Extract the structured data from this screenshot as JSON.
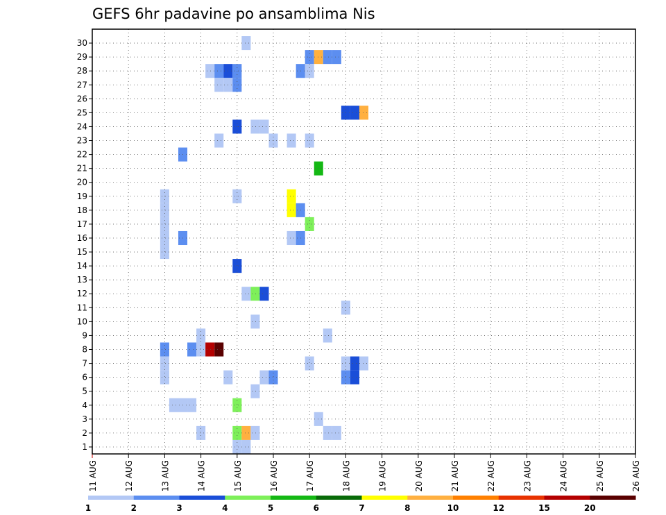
{
  "chart_data": {
    "type": "heatmap",
    "title": "GEFS 6hr padavine po ansamblima Nis",
    "xlabel": "",
    "ylabel": "",
    "x_ticks": [
      "11 AUG",
      "12 AUG",
      "13 AUG",
      "14 AUG",
      "15 AUG",
      "16 AUG",
      "17 AUG",
      "18 AUG",
      "19 AUG",
      "20 AUG",
      "21 AUG",
      "22 AUG",
      "23 AUG",
      "24 AUG",
      "25 AUG",
      "26 AUG"
    ],
    "xlim": [
      0,
      60
    ],
    "y_ticks": [
      "1",
      "2",
      "3",
      "4",
      "5",
      "6",
      "7",
      "8",
      "9",
      "10",
      "11",
      "12",
      "13",
      "14",
      "15",
      "16",
      "17",
      "18",
      "19",
      "20",
      "21",
      "22",
      "23",
      "24",
      "25",
      "26",
      "27",
      "28",
      "29",
      "30"
    ],
    "ylim": [
      0,
      30
    ],
    "grid": true,
    "colorbar": {
      "labels": [
        "1",
        "2",
        "3",
        "4",
        "5",
        "6",
        "7",
        "8",
        "10",
        "12",
        "15",
        "20"
      ],
      "colors": [
        "#b3c8f5",
        "#5c8ef0",
        "#1a4ed8",
        "#7ef05a",
        "#14b814",
        "#096b09",
        "#ffff00",
        "#ffb040",
        "#ff8000",
        "#e83200",
        "#b40000",
        "#5a0000"
      ]
    },
    "cells": [
      {
        "t": 17,
        "m": 30,
        "v": 1.5
      },
      {
        "t": 24,
        "m": 29,
        "v": 2.5
      },
      {
        "t": 25,
        "m": 29,
        "v": 9
      },
      {
        "t": 26,
        "m": 29,
        "v": 2.5
      },
      {
        "t": 27,
        "m": 29,
        "v": 2.5
      },
      {
        "t": 13,
        "m": 28,
        "v": 1.5
      },
      {
        "t": 14,
        "m": 28,
        "v": 2.5
      },
      {
        "t": 15,
        "m": 28,
        "v": 3.5
      },
      {
        "t": 16,
        "m": 28,
        "v": 2.5
      },
      {
        "t": 24,
        "m": 28,
        "v": 1.5
      },
      {
        "t": 23,
        "m": 28,
        "v": 2.5
      },
      {
        "t": 14,
        "m": 27,
        "v": 1.5
      },
      {
        "t": 15,
        "m": 27,
        "v": 1.5
      },
      {
        "t": 16,
        "m": 27,
        "v": 2.5
      },
      {
        "t": 28,
        "m": 25,
        "v": 3.5
      },
      {
        "t": 29,
        "m": 25,
        "v": 3.5
      },
      {
        "t": 30,
        "m": 25,
        "v": 9
      },
      {
        "t": 16,
        "m": 24,
        "v": 3.5
      },
      {
        "t": 18,
        "m": 24,
        "v": 1.5
      },
      {
        "t": 19,
        "m": 24,
        "v": 1.5
      },
      {
        "t": 14,
        "m": 23,
        "v": 1.5
      },
      {
        "t": 20,
        "m": 23,
        "v": 1.5
      },
      {
        "t": 22,
        "m": 23,
        "v": 1.5
      },
      {
        "t": 24,
        "m": 23,
        "v": 1.5
      },
      {
        "t": 10,
        "m": 22,
        "v": 2.5
      },
      {
        "t": 25,
        "m": 21,
        "v": 5.5
      },
      {
        "t": 16,
        "m": 19,
        "v": 1.5
      },
      {
        "t": 22,
        "m": 19,
        "v": 7.5
      },
      {
        "t": 22,
        "m": 18,
        "v": 7.5
      },
      {
        "t": 23,
        "m": 18,
        "v": 2.5
      },
      {
        "t": 8,
        "m": 19,
        "v": 1.5
      },
      {
        "t": 8,
        "m": 18,
        "v": 1.5
      },
      {
        "t": 8,
        "m": 17,
        "v": 1.5
      },
      {
        "t": 8,
        "m": 16,
        "v": 1.5
      },
      {
        "t": 8,
        "m": 15,
        "v": 1.5
      },
      {
        "t": 24,
        "m": 17,
        "v": 4.5
      },
      {
        "t": 10,
        "m": 16,
        "v": 2.5
      },
      {
        "t": 22,
        "m": 16,
        "v": 1.5
      },
      {
        "t": 23,
        "m": 16,
        "v": 2.5
      },
      {
        "t": 16,
        "m": 14,
        "v": 3.5
      },
      {
        "t": 17,
        "m": 12,
        "v": 1.5
      },
      {
        "t": 18,
        "m": 12,
        "v": 4.5
      },
      {
        "t": 19,
        "m": 12,
        "v": 3.5
      },
      {
        "t": 28,
        "m": 11,
        "v": 1.5
      },
      {
        "t": 18,
        "m": 10,
        "v": 1.5
      },
      {
        "t": 12,
        "m": 9,
        "v": 1.5
      },
      {
        "t": 26,
        "m": 9,
        "v": 1.5
      },
      {
        "t": 8,
        "m": 8,
        "v": 2.5
      },
      {
        "t": 11,
        "m": 8,
        "v": 2.5
      },
      {
        "t": 12,
        "m": 8,
        "v": 1.5
      },
      {
        "t": 13,
        "m": 8,
        "v": 17
      },
      {
        "t": 14,
        "m": 8,
        "v": 25
      },
      {
        "t": 8,
        "m": 7,
        "v": 1.5
      },
      {
        "t": 24,
        "m": 7,
        "v": 1.5
      },
      {
        "t": 28,
        "m": 7,
        "v": 1.5
      },
      {
        "t": 29,
        "m": 7,
        "v": 3.5
      },
      {
        "t": 30,
        "m": 7,
        "v": 1.5
      },
      {
        "t": 8,
        "m": 6,
        "v": 1.5
      },
      {
        "t": 15,
        "m": 6,
        "v": 1.5
      },
      {
        "t": 19,
        "m": 6,
        "v": 1.5
      },
      {
        "t": 20,
        "m": 6,
        "v": 2.5
      },
      {
        "t": 28,
        "m": 6,
        "v": 2.5
      },
      {
        "t": 29,
        "m": 6,
        "v": 3.5
      },
      {
        "t": 18,
        "m": 5,
        "v": 1.5
      },
      {
        "t": 9,
        "m": 4,
        "v": 1.5
      },
      {
        "t": 10,
        "m": 4,
        "v": 1.5
      },
      {
        "t": 11,
        "m": 4,
        "v": 1.5
      },
      {
        "t": 16,
        "m": 4,
        "v": 4.5
      },
      {
        "t": 25,
        "m": 3,
        "v": 1.5
      },
      {
        "t": 12,
        "m": 2,
        "v": 1.5
      },
      {
        "t": 16,
        "m": 2,
        "v": 4.5
      },
      {
        "t": 17,
        "m": 2,
        "v": 9
      },
      {
        "t": 18,
        "m": 2,
        "v": 1.5
      },
      {
        "t": 26,
        "m": 2,
        "v": 1.5
      },
      {
        "t": 27,
        "m": 2,
        "v": 1.5
      },
      {
        "t": 16,
        "m": 1,
        "v": 1.5
      },
      {
        "t": 17,
        "m": 1,
        "v": 1.5
      }
    ]
  }
}
